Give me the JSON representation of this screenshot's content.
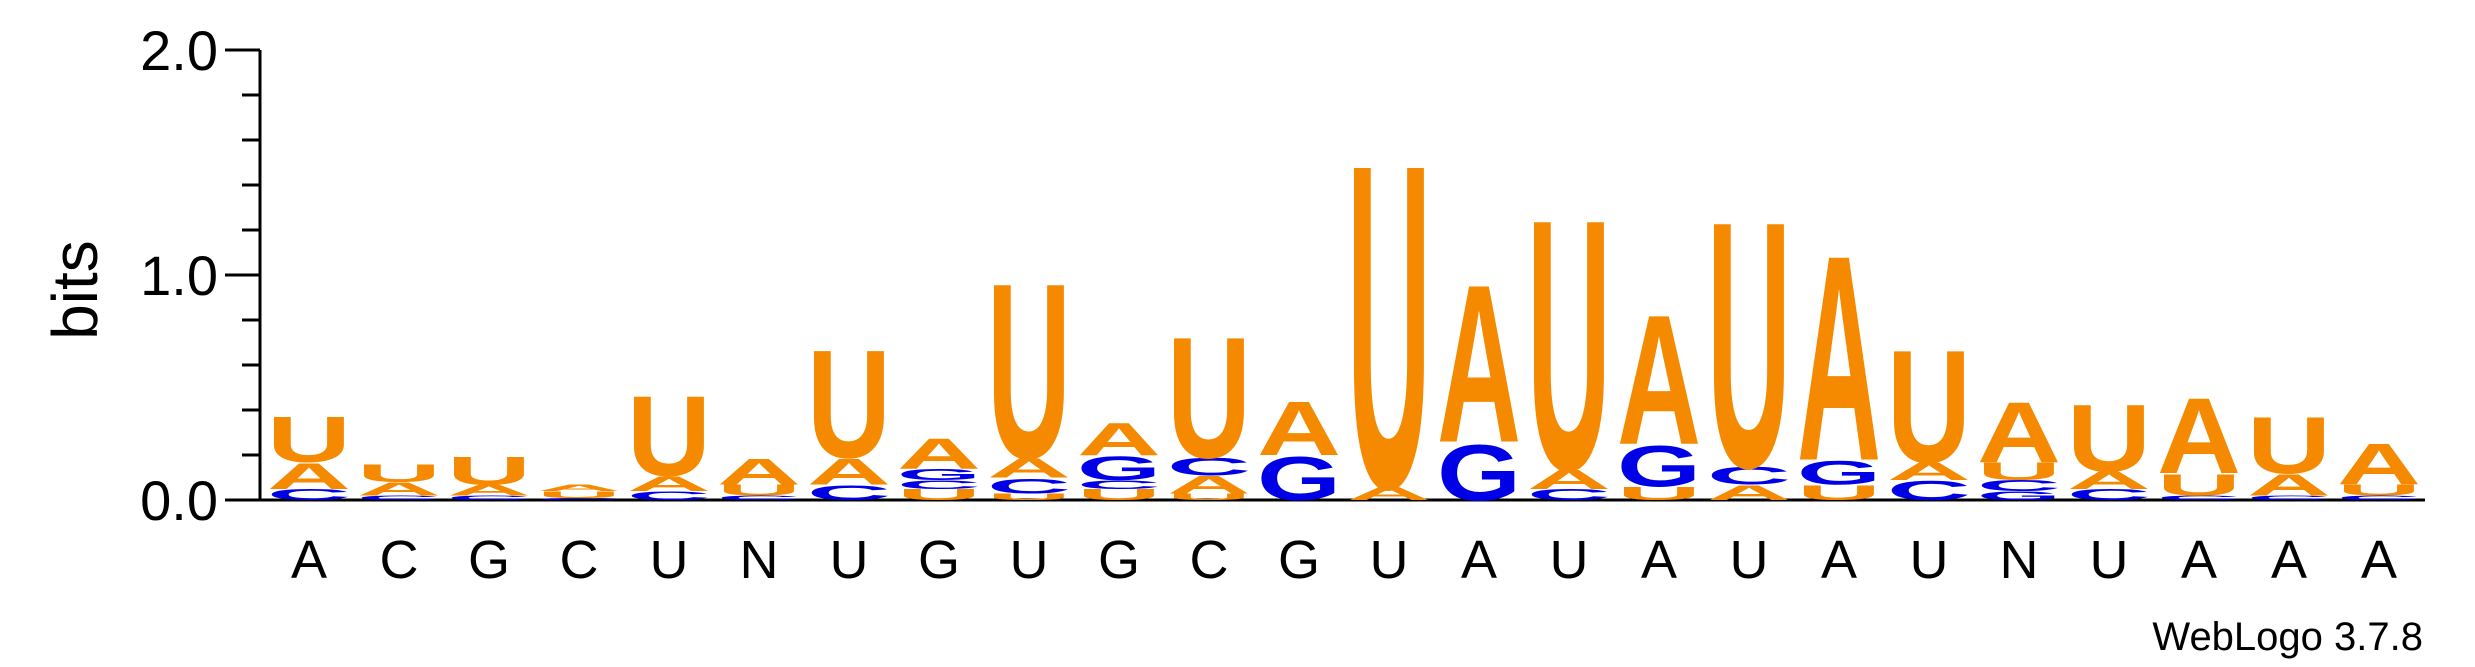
{
  "chart_data": {
    "type": "sequence-logo",
    "ylabel": "bits",
    "ylim": [
      0,
      2.0
    ],
    "yticks": [
      "0.0",
      "1.0",
      "2.0"
    ],
    "credit": "WebLogo 3.7.8",
    "colors": {
      "A": "#f58a00",
      "U": "#f58a00",
      "G": "#0000e6",
      "C": "#0000e6",
      "N": "#f58a00"
    },
    "positions": [
      {
        "label": "A",
        "stack": [
          [
            "C",
            0.05
          ],
          [
            "A",
            0.12
          ],
          [
            "U",
            0.21
          ]
        ]
      },
      {
        "label": "C",
        "stack": [
          [
            "C",
            0.02
          ],
          [
            "A",
            0.06
          ],
          [
            "U",
            0.08
          ]
        ]
      },
      {
        "label": "G",
        "stack": [
          [
            "C",
            0.02
          ],
          [
            "A",
            0.05
          ],
          [
            "U",
            0.13
          ]
        ]
      },
      {
        "label": "C",
        "stack": [
          [
            "C",
            0.01
          ],
          [
            "U",
            0.03
          ],
          [
            "A",
            0.03
          ]
        ]
      },
      {
        "label": "U",
        "stack": [
          [
            "C",
            0.04
          ],
          [
            "A",
            0.07
          ],
          [
            "U",
            0.37
          ]
        ]
      },
      {
        "label": "N",
        "stack": [
          [
            "C",
            0.02
          ],
          [
            "U",
            0.05
          ],
          [
            "A",
            0.12
          ]
        ]
      },
      {
        "label": "U",
        "stack": [
          [
            "C",
            0.07
          ],
          [
            "A",
            0.12
          ],
          [
            "U",
            0.5
          ]
        ]
      },
      {
        "label": "G",
        "stack": [
          [
            "U",
            0.05
          ],
          [
            "C",
            0.04
          ],
          [
            "G",
            0.05
          ],
          [
            "A",
            0.14
          ]
        ]
      },
      {
        "label": "U",
        "stack": [
          [
            "U",
            0.03
          ],
          [
            "C",
            0.07
          ],
          [
            "A",
            0.09
          ],
          [
            "U",
            0.81
          ]
        ]
      },
      {
        "label": "G",
        "stack": [
          [
            "U",
            0.05
          ],
          [
            "C",
            0.04
          ],
          [
            "G",
            0.11
          ],
          [
            "A",
            0.15
          ]
        ]
      },
      {
        "label": "C",
        "stack": [
          [
            "U",
            0.03
          ],
          [
            "A",
            0.08
          ],
          [
            "C",
            0.08
          ],
          [
            "U",
            0.56
          ]
        ]
      },
      {
        "label": "G",
        "stack": [
          [
            "G",
            0.2
          ],
          [
            "A",
            0.25
          ]
        ]
      },
      {
        "label": "U",
        "stack": [
          [
            "A",
            0.06
          ],
          [
            "U",
            1.5
          ]
        ]
      },
      {
        "label": "A",
        "stack": [
          [
            "G",
            0.26
          ],
          [
            "A",
            0.73
          ]
        ]
      },
      {
        "label": "U",
        "stack": [
          [
            "C",
            0.05
          ],
          [
            "A",
            0.09
          ],
          [
            "U",
            1.16
          ]
        ]
      },
      {
        "label": "A",
        "stack": [
          [
            "U",
            0.06
          ],
          [
            "G",
            0.19
          ],
          [
            "A",
            0.6
          ]
        ]
      },
      {
        "label": "U",
        "stack": [
          [
            "A",
            0.07
          ],
          [
            "C",
            0.08
          ],
          [
            "U",
            1.14
          ]
        ]
      },
      {
        "label": "A",
        "stack": [
          [
            "U",
            0.07
          ],
          [
            "G",
            0.11
          ],
          [
            "A",
            0.95
          ]
        ]
      },
      {
        "label": "U",
        "stack": [
          [
            "C",
            0.09
          ],
          [
            "A",
            0.08
          ],
          [
            "U",
            0.52
          ]
        ]
      },
      {
        "label": "N",
        "stack": [
          [
            "G",
            0.04
          ],
          [
            "C",
            0.05
          ],
          [
            "U",
            0.08
          ],
          [
            "A",
            0.28
          ]
        ]
      },
      {
        "label": "U",
        "stack": [
          [
            "C",
            0.05
          ],
          [
            "A",
            0.08
          ],
          [
            "U",
            0.31
          ]
        ]
      },
      {
        "label": "A",
        "stack": [
          [
            "C",
            0.02
          ],
          [
            "U",
            0.1
          ],
          [
            "A",
            0.35
          ]
        ]
      },
      {
        "label": "A",
        "stack": [
          [
            "C",
            0.02
          ],
          [
            "A",
            0.1
          ],
          [
            "U",
            0.26
          ]
        ]
      },
      {
        "label": "A",
        "stack": [
          [
            "C",
            0.02
          ],
          [
            "U",
            0.05
          ],
          [
            "A",
            0.19
          ]
        ]
      }
    ]
  }
}
